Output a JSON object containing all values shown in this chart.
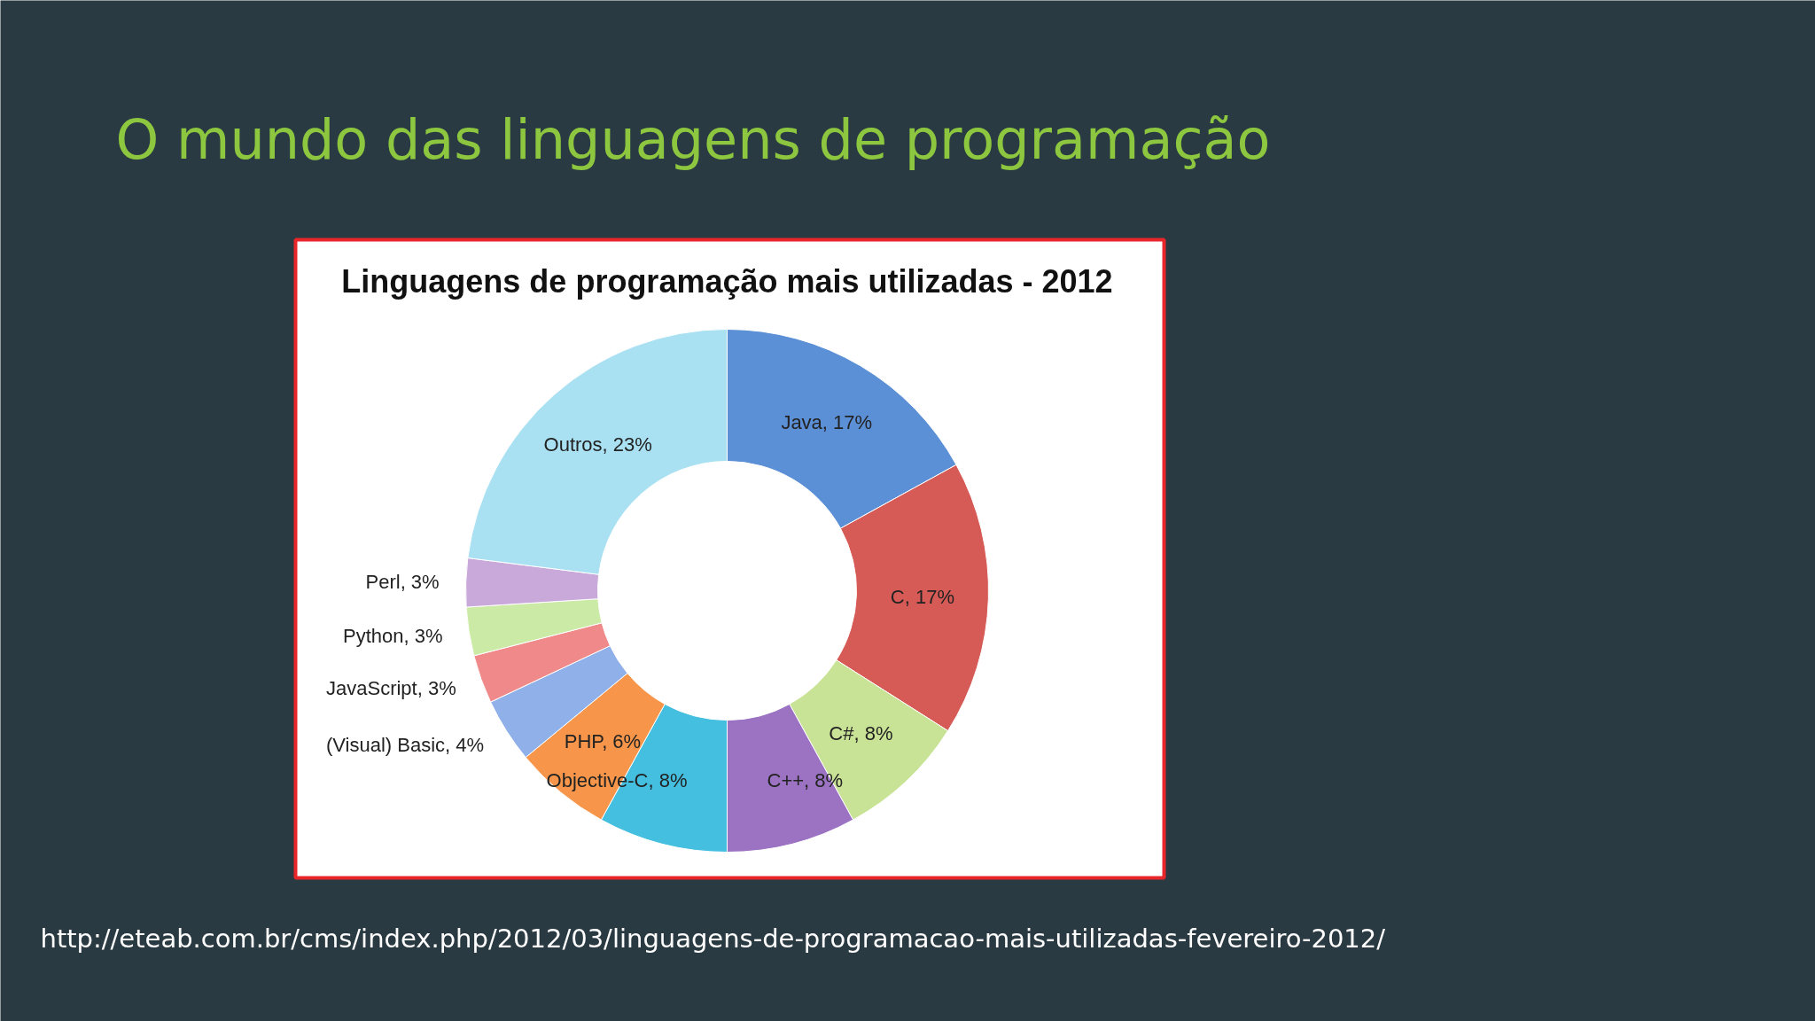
{
  "chart_data": {
    "type": "donut",
    "title": "O mundo das linguagens de programação",
    "subtitle": "Linguagens de programação mais utilizadas - 2012",
    "categories": [
      "Java",
      "C",
      "C#",
      "C++",
      "Objective-C",
      "PHP",
      "(Visual) Basic",
      "JavaScript",
      "Python",
      "Perl",
      "Outros"
    ],
    "values": [
      17,
      17,
      8,
      8,
      8,
      6,
      4,
      3,
      3,
      3,
      23
    ],
    "colors": [
      "#5b8fd6",
      "#d65a55",
      "#c8e296",
      "#9b73c2",
      "#45bfe0",
      "#f7964a",
      "#8fb0e8",
      "#f08a8a",
      "#cbeaa6",
      "#c9a8da",
      "#a9e1f3"
    ],
    "value_labels": [
      "17%",
      "17%",
      "8%",
      "8%",
      "8%",
      "6%",
      "4%",
      "3%",
      "3%",
      "3%",
      "23%"
    ],
    "annotations": [
      "http://eteab.com.br/cms/index.php/2012/03/linguagens-de-programacao-mais-utilizadas-fevereiro-2012/"
    ]
  }
}
